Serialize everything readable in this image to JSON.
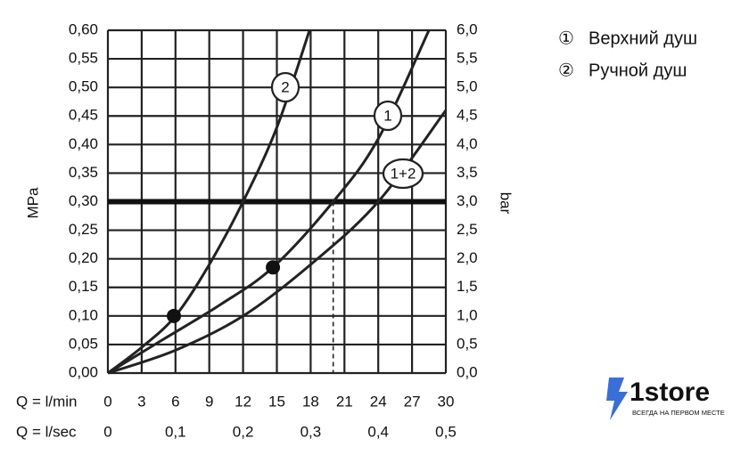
{
  "chart_data": {
    "type": "line",
    "series": [
      {
        "name": "2",
        "color": "#222222",
        "x": [
          0,
          3,
          6,
          9,
          12,
          15,
          17.9
        ],
        "values": [
          0,
          0.045,
          0.1,
          0.19,
          0.3,
          0.43,
          0.6
        ]
      },
      {
        "name": "1",
        "color": "#222222",
        "x": [
          0,
          5,
          10,
          14.65,
          20,
          24,
          28.5
        ],
        "values": [
          0,
          0.06,
          0.12,
          0.185,
          0.3,
          0.41,
          0.6
        ]
      },
      {
        "name": "1+2",
        "color": "#222222",
        "x": [
          0,
          6,
          12,
          18,
          24,
          30
        ],
        "values": [
          0,
          0.04,
          0.1,
          0.19,
          0.3,
          0.46
        ]
      }
    ],
    "markers": {
      "x": [
        5.86,
        14.65
      ],
      "values": [
        0.1,
        0.185
      ]
    },
    "reference_line": 0.3,
    "drop_lines_x": [
      12,
      20,
      24
    ],
    "xlabel": "Q = l/min",
    "x2label": "Q = l/sec",
    "ylabel": "MPa",
    "y2label": "bar",
    "xlim": [
      0,
      30
    ],
    "xticks": [
      0,
      3,
      6,
      9,
      12,
      15,
      18,
      21,
      24,
      27,
      30
    ],
    "x2lim": [
      0,
      0.5
    ],
    "x2ticks": [
      0,
      {
        "value": 0.1,
        "label": "0,1"
      },
      {
        "value": 0.2,
        "label": "0,2"
      },
      {
        "value": 0.3,
        "label": "0,3"
      },
      {
        "value": 0.4,
        "label": "0,4"
      },
      {
        "value": 0.5,
        "label": "0,5"
      }
    ],
    "ylim": [
      0,
      0.6
    ],
    "yticks": [
      {
        "value": 0,
        "label": "0,00"
      },
      {
        "value": 0.05,
        "label": "0,05"
      },
      {
        "value": 0.1,
        "label": "0,10"
      },
      {
        "value": 0.15,
        "label": "0,15"
      },
      {
        "value": 0.2,
        "label": "0,20"
      },
      {
        "value": 0.25,
        "label": "0,25"
      },
      {
        "value": 0.3,
        "label": "0,30"
      },
      {
        "value": 0.35,
        "label": "0,35"
      },
      {
        "value": 0.4,
        "label": "0,40"
      },
      {
        "value": 0.45,
        "label": "0,45"
      },
      {
        "value": 0.5,
        "label": "0,50"
      },
      {
        "value": 0.55,
        "label": "0,55"
      },
      {
        "value": 0.6,
        "label": "0,60"
      }
    ],
    "y2lim": [
      0,
      6
    ],
    "y2ticks": [
      {
        "value": 0,
        "label": "0,0"
      },
      {
        "value": 0.5,
        "label": "0,5"
      },
      {
        "value": 1,
        "label": "1,0"
      },
      {
        "value": 1.5,
        "label": "1,5"
      },
      {
        "value": 2,
        "label": "2,0"
      },
      {
        "value": 2.5,
        "label": "2,5"
      },
      {
        "value": 3,
        "label": "3,0"
      },
      {
        "value": 3.5,
        "label": "3,5"
      },
      {
        "value": 4,
        "label": "4,0"
      },
      {
        "value": 4.5,
        "label": "4,5"
      },
      {
        "value": 5,
        "label": "5,0"
      },
      {
        "value": 5.5,
        "label": "5,5"
      },
      {
        "value": 6,
        "label": "6,0"
      }
    ],
    "grid": true,
    "legend_items": [
      {
        "symbol": "①",
        "text": "Верхний душ"
      },
      {
        "symbol": "②",
        "text": "Ручной душ"
      }
    ]
  },
  "brand": {
    "name": "1store",
    "tagline": "ВСЕГДА НА ПЕРВОМ МЕСТЕ"
  }
}
